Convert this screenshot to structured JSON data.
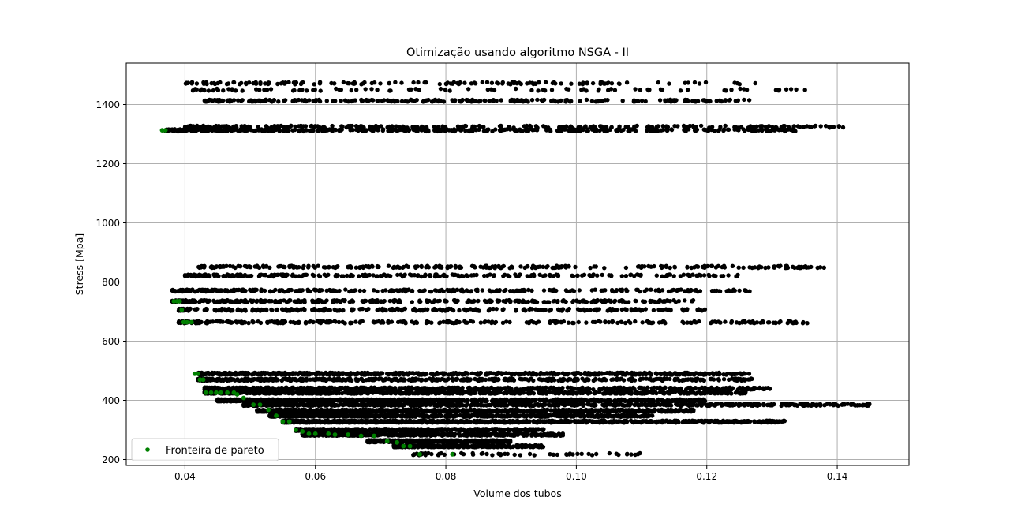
{
  "chart_data": {
    "type": "scatter",
    "title": "Otimização usando algoritmo NSGA - II",
    "xlabel": "Volume dos tubos",
    "ylabel": "Stress [Mpa]",
    "xlim": [
      0.031,
      0.151
    ],
    "ylim": [
      180,
      1540
    ],
    "xticks": [
      0.04,
      0.06,
      0.08,
      0.1,
      0.12,
      0.14
    ],
    "xtick_labels": [
      "0.04",
      "0.06",
      "0.08",
      "0.10",
      "0.12",
      "0.14"
    ],
    "yticks": [
      200,
      400,
      600,
      800,
      1000,
      1200,
      1400
    ],
    "ytick_labels": [
      "200",
      "400",
      "600",
      "800",
      "1000",
      "1200",
      "1400"
    ],
    "grid": true,
    "legend": {
      "position": "lower-left",
      "entries": [
        "Fronteira de pareto"
      ]
    },
    "colors": {
      "population": "#000000",
      "pareto": "#008000",
      "grid": "#b0b0b0"
    },
    "population_bands": [
      {
        "y": 1472,
        "x_min": 0.04,
        "x_max": 0.128,
        "n": 150
      },
      {
        "y": 1450,
        "x_min": 0.041,
        "x_max": 0.136,
        "n": 90
      },
      {
        "y": 1413,
        "x_min": 0.043,
        "x_max": 0.127,
        "n": 260
      },
      {
        "y": 1325,
        "x_min": 0.04,
        "x_max": 0.141,
        "n": 280
      },
      {
        "y": 1313,
        "x_min": 0.037,
        "x_max": 0.135,
        "n": 420
      },
      {
        "y": 851,
        "x_min": 0.042,
        "x_max": 0.138,
        "n": 280
      },
      {
        "y": 822,
        "x_min": 0.04,
        "x_max": 0.125,
        "n": 260
      },
      {
        "y": 771,
        "x_min": 0.038,
        "x_max": 0.127,
        "n": 300
      },
      {
        "y": 735,
        "x_min": 0.038,
        "x_max": 0.118,
        "n": 360
      },
      {
        "y": 706,
        "x_min": 0.039,
        "x_max": 0.121,
        "n": 260
      },
      {
        "y": 664,
        "x_min": 0.039,
        "x_max": 0.136,
        "n": 300
      },
      {
        "y": 490,
        "x_min": 0.042,
        "x_max": 0.127,
        "n": 700
      },
      {
        "y": 470,
        "x_min": 0.042,
        "x_max": 0.127,
        "n": 500
      },
      {
        "y": 440,
        "x_min": 0.043,
        "x_max": 0.13,
        "n": 600
      },
      {
        "y": 426,
        "x_min": 0.043,
        "x_max": 0.126,
        "n": 900
      },
      {
        "y": 400,
        "x_min": 0.045,
        "x_max": 0.12,
        "n": 800
      },
      {
        "y": 385,
        "x_min": 0.049,
        "x_max": 0.145,
        "n": 800
      },
      {
        "y": 365,
        "x_min": 0.051,
        "x_max": 0.118,
        "n": 800
      },
      {
        "y": 348,
        "x_min": 0.053,
        "x_max": 0.112,
        "n": 700
      },
      {
        "y": 328,
        "x_min": 0.055,
        "x_max": 0.132,
        "n": 800
      },
      {
        "y": 300,
        "x_min": 0.057,
        "x_max": 0.095,
        "n": 500
      },
      {
        "y": 284,
        "x_min": 0.058,
        "x_max": 0.098,
        "n": 600
      },
      {
        "y": 262,
        "x_min": 0.068,
        "x_max": 0.09,
        "n": 400
      },
      {
        "y": 245,
        "x_min": 0.072,
        "x_max": 0.095,
        "n": 300
      },
      {
        "y": 218,
        "x_min": 0.075,
        "x_max": 0.11,
        "n": 60
      }
    ],
    "pareto_points": [
      [
        0.0365,
        1313
      ],
      [
        0.037,
        1313
      ],
      [
        0.0383,
        735
      ],
      [
        0.0388,
        735
      ],
      [
        0.0392,
        735
      ],
      [
        0.0395,
        706
      ],
      [
        0.0398,
        664
      ],
      [
        0.0403,
        664
      ],
      [
        0.041,
        664
      ],
      [
        0.0415,
        490
      ],
      [
        0.042,
        490
      ],
      [
        0.0423,
        470
      ],
      [
        0.0428,
        470
      ],
      [
        0.0432,
        426
      ],
      [
        0.044,
        426
      ],
      [
        0.0448,
        426
      ],
      [
        0.0455,
        426
      ],
      [
        0.0465,
        426
      ],
      [
        0.0475,
        426
      ],
      [
        0.048,
        420
      ],
      [
        0.049,
        408
      ],
      [
        0.0505,
        385
      ],
      [
        0.0515,
        385
      ],
      [
        0.0528,
        368
      ],
      [
        0.054,
        348
      ],
      [
        0.055,
        328
      ],
      [
        0.056,
        328
      ],
      [
        0.057,
        300
      ],
      [
        0.058,
        295
      ],
      [
        0.059,
        287
      ],
      [
        0.06,
        287
      ],
      [
        0.062,
        287
      ],
      [
        0.063,
        284
      ],
      [
        0.065,
        284
      ],
      [
        0.067,
        280
      ],
      [
        0.069,
        280
      ],
      [
        0.071,
        262
      ],
      [
        0.0725,
        258
      ],
      [
        0.0735,
        245
      ],
      [
        0.0745,
        245
      ],
      [
        0.076,
        218
      ],
      [
        0.081,
        218
      ]
    ]
  }
}
